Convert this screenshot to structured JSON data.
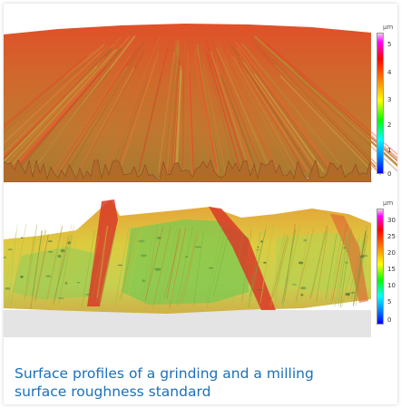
{
  "figure": {
    "top_panel": {
      "unit": "µm",
      "ticks": [
        "5",
        "4",
        "3",
        "2",
        "1",
        "0"
      ]
    },
    "bottom_panel": {
      "unit": "µm",
      "ticks": [
        "30",
        "25",
        "20",
        "15",
        "10",
        "5",
        "0"
      ]
    },
    "caption_line1": "Surface profiles of a grinding and a milling",
    "caption_line2": "surface roughness standard"
  },
  "colors": {
    "caption": "#1d6fb8",
    "grinding_surface": "#c8682a",
    "milling_surface": "#d8d040"
  }
}
